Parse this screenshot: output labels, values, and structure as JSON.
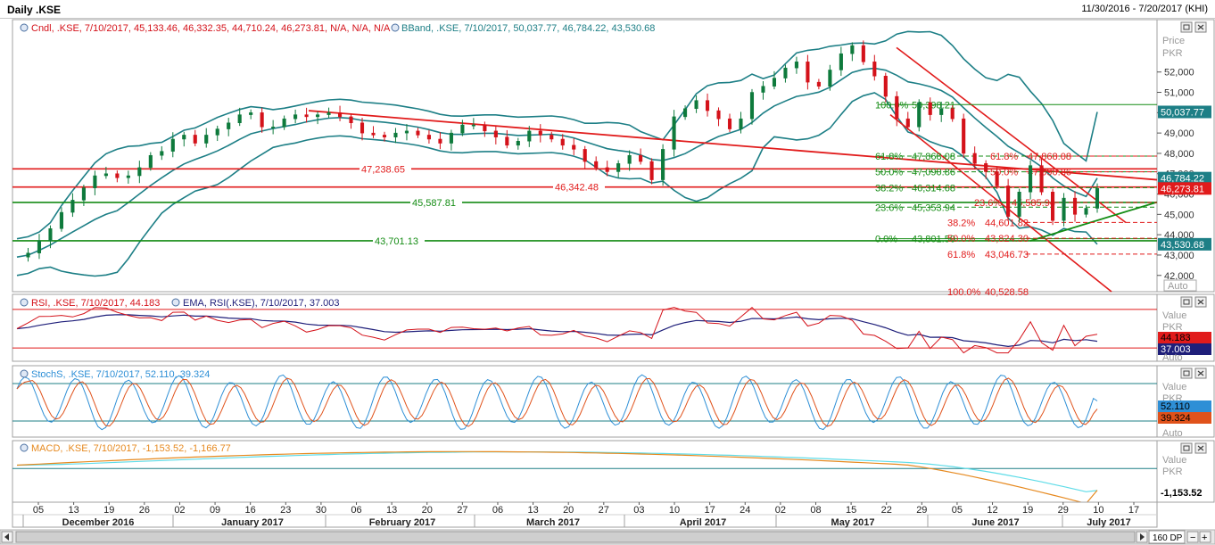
{
  "window": {
    "title": "Daily .KSE",
    "date_range": "11/30/2016 - 7/20/2017 (KHI)"
  },
  "colors": {
    "up": "#0e7a3c",
    "down": "#d4121a",
    "band": "#1d7f86",
    "red_line": "#e11b1b",
    "green_line": "#148c14",
    "rsi": "#d4121a",
    "rsi_ema": "#1f1f7a",
    "stoch_k": "#2e8fd6",
    "stoch_d": "#e0521b",
    "macd": "#e6891f",
    "macd_signal": "#5fdce8"
  },
  "icons": {
    "close": "close-icon",
    "expand": "expand-icon",
    "indicator": "indicator-icon"
  },
  "panels": {
    "price": {
      "legend1": "Cndl, .KSE, 7/10/2017, 45,133.46, 46,332.35, 44,710.24, 46,273.81, N/A, N/A, N/A",
      "legend2": "BBand, .KSE, 7/10/2017, 50,037.77, 46,784.22, 43,530.68",
      "axis_title1": "Price",
      "axis_title2": "PKR",
      "auto": "Auto"
    },
    "rsi": {
      "legend1": "RSI, .KSE, 7/10/2017, 44.183",
      "legend2": "EMA, RSI(.KSE), 7/10/2017, 37.003",
      "axis_title1": "Value",
      "axis_title2": "PKR",
      "auto": "Auto"
    },
    "stoch": {
      "legend1": "StochS, .KSE, 7/10/2017, 52.110, 39.324",
      "axis_title1": "Value",
      "axis_title2": "PKR",
      "auto": "Auto"
    },
    "macd": {
      "legend1": "MACD, .KSE, 7/10/2017, -1,153.52, -1,166.77",
      "axis_title1": "Value",
      "axis_title2": "PKR"
    }
  },
  "scrollbar": {
    "zoom": "160 DP"
  },
  "chart_data": [
    {
      "type": "candlestick",
      "title": "Daily .KSE",
      "ylabel": "Price PKR",
      "ylim": [
        41200,
        54400
      ],
      "y_ticks": [
        "42,000",
        "43,000",
        "44,000",
        "45,000",
        "46,000",
        "47,000",
        "48,000",
        "49,000",
        "50,000",
        "51,000",
        "52,000"
      ],
      "x_tick_labels": [
        "05",
        "13",
        "19",
        "26",
        "02",
        "09",
        "16",
        "23",
        "30",
        "06",
        "13",
        "20",
        "27",
        "06",
        "13",
        "20",
        "27",
        "03",
        "10",
        "17",
        "24",
        "02",
        "08",
        "15",
        "22",
        "29",
        "05",
        "12",
        "19",
        "29",
        "10",
        "17"
      ],
      "x_months": [
        "December 2016",
        "January 2017",
        "February 2017",
        "March 2017",
        "April 2017",
        "May 2017",
        "June 2017",
        "July 2017"
      ],
      "last_bar": {
        "date": "7/10/2017",
        "open": 45133.46,
        "high": 46332.35,
        "low": 44710.24,
        "close": 46273.81
      },
      "close_path": [
        42900,
        43100,
        43700,
        44300,
        45100,
        45700,
        46300,
        46900,
        47000,
        46800,
        46900,
        47300,
        47900,
        48100,
        48700,
        48900,
        48500,
        48900,
        49200,
        49500,
        49900,
        50000,
        49300,
        49300,
        49700,
        49900,
        49800,
        49900,
        50000,
        49800,
        49500,
        49000,
        48900,
        48800,
        49000,
        49100,
        48900,
        48700,
        48500,
        49000,
        49400,
        49400,
        49100,
        48800,
        48400,
        48600,
        49100,
        48900,
        48700,
        48400,
        48200,
        47600,
        47300,
        47100,
        47500,
        47900,
        47600,
        46700,
        48200,
        49800,
        50200,
        50600,
        50100,
        49700,
        49200,
        49700,
        51000,
        51300,
        51700,
        52200,
        52500,
        51500,
        51300,
        52100,
        52900,
        53300,
        52500,
        51800,
        50800,
        49700,
        49300,
        50500,
        49900,
        50200,
        49700,
        48000,
        47500,
        47100,
        46400,
        44900,
        46100,
        47400,
        46100,
        44700,
        45800,
        45000,
        45300,
        46273.81
      ],
      "bband": {
        "upper": 50037.77,
        "middle": 46784.22,
        "lower": 43530.68
      },
      "levels": [
        {
          "label": "47,238.65",
          "value": 47238.65,
          "kind": "resistance"
        },
        {
          "label": "46,342.48",
          "value": 46342.48,
          "kind": "resistance"
        },
        {
          "label": "45,587.81",
          "value": 45587.81,
          "kind": "support"
        },
        {
          "label": "43,701.13",
          "value": 43701.13,
          "kind": "support"
        }
      ],
      "fib_green": [
        {
          "pct": "100.0%",
          "value": "50,398.21"
        },
        {
          "pct": "61.8%",
          "value": "47,868.08"
        },
        {
          "pct": "50.0%",
          "value": "47,090.86"
        },
        {
          "pct": "38.2%",
          "value": "46,314.68"
        },
        {
          "pct": "23.6%",
          "value": "45,353.94"
        },
        {
          "pct": "0.0%",
          "value": "43,801.50"
        }
      ],
      "fib_red": [
        {
          "pct": "61.8%",
          "value": "47,868.08"
        },
        {
          "pct": "50.0%",
          "value": "47,090.86"
        },
        {
          "pct": "23.6%",
          "value": "45,585.94"
        },
        {
          "pct": "38.2%",
          "value": "44,601.82"
        },
        {
          "pct": "50.0%",
          "value": "43,824.30"
        },
        {
          "pct": "61.8%",
          "value": "43,046.73"
        },
        {
          "pct": "100.0%",
          "value": "40,528.58"
        }
      ],
      "right_labels": [
        {
          "label": "50,037.77",
          "value": 50037.77,
          "kind": "band"
        },
        {
          "label": "46,784.22",
          "value": 46784.22,
          "kind": "band"
        },
        {
          "label": "46,273.81",
          "value": 46273.81,
          "kind": "last"
        },
        {
          "label": "43,530.68",
          "value": 43530.68,
          "kind": "band"
        }
      ]
    },
    {
      "type": "line",
      "name": "RSI",
      "last": {
        "rsi": "44.183",
        "ema": "37.003"
      },
      "ylim": [
        20,
        80
      ],
      "bands": [
        70,
        30
      ]
    },
    {
      "type": "line",
      "name": "StochS",
      "last": {
        "k": "52.110",
        "d": "39.324"
      },
      "ylim": [
        0,
        100
      ],
      "bands": [
        80,
        20
      ]
    },
    {
      "type": "line",
      "name": "MACD",
      "last": {
        "macd": "-1,153.52",
        "signal": "-1,166.77"
      },
      "ylim": [
        -1600,
        1200
      ]
    }
  ]
}
